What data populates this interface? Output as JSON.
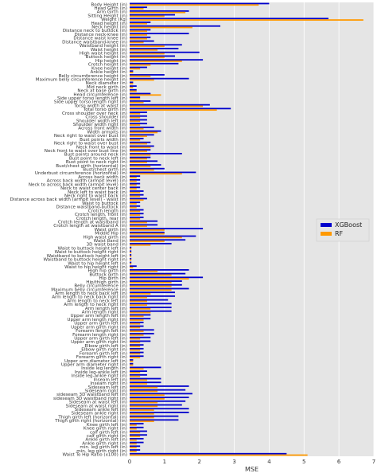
{
  "chart_data": {
    "type": "bar",
    "orientation": "horizontal",
    "xlabel": "MSE",
    "xlim": [
      0,
      7
    ],
    "xticks": [
      0,
      1,
      2,
      3,
      4,
      5,
      6,
      7
    ],
    "grid": true,
    "legend_position": "right",
    "colors": {
      "XGBoost": "#0000cc",
      "RF": "#ff9900",
      "background": "#e5e5e5",
      "grid": "#ffffff"
    },
    "categories": [
      "Body Height (in)",
      "Head Girth (in)",
      "Arm Girth (in)",
      "Sitting Height (in)",
      "Weight (Kg)",
      "Head height (in)",
      "Neck height (in)",
      "Distance neck to buttock (in)",
      "Distance neck-knee (in)",
      "Distance waist knee (in)",
      "Distance waistband-knee (in)",
      "Waistband height (in)",
      "Waist height (in)",
      "High waist height (in)",
      "Buttock height (in)",
      "Hip height (in)",
      "Crotch height (in)",
      "Knee height (in)",
      "Ankle height (in)",
      "Belly circumference height (in)",
      "Maximum belly circumference height (in)",
      "Neck diameter (in)",
      "Mid neck girth (in)",
      "Neck at base girth (in)",
      "Head circumference (in)",
      "Side upper torso length left (in)",
      "Side upper torso length right (in)",
      "Torso width at waist (in)",
      "Total torso girth (in)",
      "Cross shoulder over neck (in)",
      "Cross shoulder (in)",
      "Shoulder width left (in)",
      "Shoulder width right (in)",
      "Across front width (in)",
      "Width armpits (in)",
      "Neck right to waist over bust (in)",
      "Bust points width (in)",
      "Neck right to waist over bust (in)",
      "Neck front to waist (in)",
      "Neck front to waist over bust line (in)",
      "Bust points around neck (in)",
      "Bust point to neck left (in)",
      "Bust point to neck right (in)",
      "Bust/chest girth (horizontal) (in)",
      "Bust/chest girth (in)",
      "Underbust circumference (horizontal) (in)",
      "Across back width (in)",
      "Across back width (armpit level) (in)",
      "Neck to across back width (armpit level) (in)",
      "Neck to waist center back (in)",
      "Neck left to waist back (in)",
      "Neck right to waist back (in)",
      "Distance across back width (armpit level) - waist (in)",
      "Waist to buttock (in)",
      "Distance waistband-buttock (in)",
      "Crotch length (in)",
      "Crotch length, front (in)",
      "Crotch length, rear (in)",
      "Crotch length at waistband (in)",
      "Crotch length at waistband A (in)",
      "Waist girth (in)",
      "Middle Hip (in)",
      "High waist girth (in)",
      "Waist band (in)",
      "3D waist band (in)",
      "Waist to buttock height left (in)",
      "Waist to buttock height right (in)",
      "Waistband to buttock height left (in)",
      "Waistband to buttock height right (in)",
      "Waist to hip height left (in)",
      "Waist to hip height right (in)",
      "High hip girth (in)",
      "Buttock girth (in)",
      "Hip girth (in)",
      "Hip/thigh girth (in)",
      "Belly circumference (in)",
      "Maximum belly circumference (in)",
      "Arm length to neck back left (in)",
      "Arm length to neck back right (in)",
      "Arm length to neck left (in)",
      "Arm length to neck right (in)",
      "Arm length left (in)",
      "Arm length right (in)",
      "Upper arm length left (in)",
      "Upper arm length right (in)",
      "Upper arm girth left (in)",
      "Upper arm girth right (in)",
      "Forearm length left (in)",
      "Forearm length right (in)",
      "Upper arm girth left (in)",
      "Upper arm girth right (in)",
      "Elbow girth left (in)",
      "Elbow girth right (in)",
      "Forearm girth left (in)",
      "Forearm girth right (in)",
      "Upper arm diameter left (in)",
      "Upper arm diameter right (in)",
      "Inside leg length (in)",
      "Inside leg-ankle left (in)",
      "Inside leg-ankle right (in)",
      "Inseam left (in)",
      "Inseam right (in)",
      "Sideseam left (in)",
      "Sideseam right (in)",
      "sideseam 3D waistband left (in)",
      "sideseam 3D waistband right (in)",
      "Sideseam at waist left (in)",
      "Sideseam at waist right (in)",
      "Sideseam ankle left (in)",
      "Sideseam ankle right (in)",
      "Thigh girth left (horizontal) (in)",
      "Thigh girth right (horizontal) (in)",
      "Knee girth left (in)",
      "Knee girth right (in)",
      "calf girth left (in)",
      "calf girth right (in)",
      "Ankle girth left (in)",
      "Ankle girth right (in)",
      "min. leg girth left (in)",
      "min. leg girth right (in)",
      "Waist To Hip Ratio (x100) (in)"
    ],
    "series": [
      {
        "name": "XGBoost",
        "values": [
          4.0,
          0.5,
          1.7,
          1.3,
          5.7,
          0.6,
          2.6,
          0.6,
          1.7,
          0.6,
          0.7,
          1.5,
          1.4,
          2.0,
          1.3,
          2.1,
          1.4,
          0.5,
          0.1,
          1.0,
          1.7,
          0.1,
          0.2,
          0.2,
          0.6,
          0.3,
          0.6,
          2.3,
          2.9,
          0.5,
          0.5,
          0.5,
          0.5,
          0.7,
          0.9,
          0.7,
          0.4,
          0.6,
          0.7,
          0.6,
          1.5,
          0.6,
          0.8,
          0.9,
          1.0,
          1.9,
          0.3,
          0.3,
          0.3,
          0.3,
          0.4,
          0.4,
          0.5,
          0.3,
          0.3,
          0.4,
          0.4,
          0.4,
          0.8,
          0.8,
          2.1,
          1.0,
          1.9,
          1.6,
          1.2,
          0.05,
          0.05,
          0.05,
          0.05,
          0.05,
          0.2,
          1.7,
          1.6,
          2.1,
          1.5,
          1.5,
          1.7,
          1.3,
          1.3,
          1.1,
          1.2,
          1.2,
          1.2,
          0.6,
          0.6,
          0.4,
          0.4,
          0.7,
          0.7,
          0.6,
          0.6,
          0.4,
          0.4,
          0.4,
          0.4,
          0.1,
          0.1,
          0.9,
          0.5,
          0.5,
          0.9,
          0.9,
          1.7,
          1.6,
          1.8,
          1.7,
          1.6,
          1.5,
          1.7,
          1.7,
          1.4,
          1.4,
          0.4,
          0.4,
          0.5,
          0.5,
          0.4,
          0.4,
          0.3,
          0.3,
          4.5
        ]
      },
      {
        "name": "RF",
        "values": [
          3.7,
          0.4,
          1.6,
          1.0,
          6.7,
          0.5,
          1.8,
          0.5,
          0.5,
          0.5,
          0.4,
          1.0,
          0.8,
          1.0,
          1.0,
          1.5,
          0.6,
          0.3,
          0.1,
          0.6,
          0.7,
          0.1,
          0.1,
          0.2,
          0.9,
          0.3,
          0.4,
          2.1,
          2.5,
          0.3,
          0.3,
          0.3,
          0.3,
          0.4,
          0.8,
          0.5,
          0.3,
          0.5,
          0.6,
          0.5,
          0.6,
          0.5,
          0.5,
          0.6,
          0.7,
          1.5,
          0.2,
          0.2,
          0.2,
          0.2,
          0.3,
          0.3,
          0.4,
          0.2,
          0.2,
          0.3,
          0.3,
          0.3,
          0.5,
          0.5,
          1.0,
          1.0,
          1.5,
          1.0,
          0.6,
          0.05,
          0.05,
          0.05,
          0.05,
          0.05,
          0.1,
          0.8,
          1.2,
          1.7,
          1.2,
          1.2,
          1.2,
          0.6,
          0.5,
          0.5,
          0.5,
          0.6,
          0.6,
          0.4,
          0.4,
          0.3,
          0.3,
          0.4,
          0.4,
          0.3,
          0.3,
          0.3,
          0.3,
          0.3,
          0.3,
          0.1,
          0.1,
          0.4,
          0.3,
          0.3,
          0.5,
          0.5,
          0.8,
          0.8,
          1.0,
          1.0,
          0.8,
          0.8,
          0.7,
          0.7,
          0.7,
          0.7,
          0.2,
          0.2,
          0.3,
          0.3,
          0.2,
          0.2,
          0.2,
          0.2,
          5.1
        ]
      }
    ]
  }
}
